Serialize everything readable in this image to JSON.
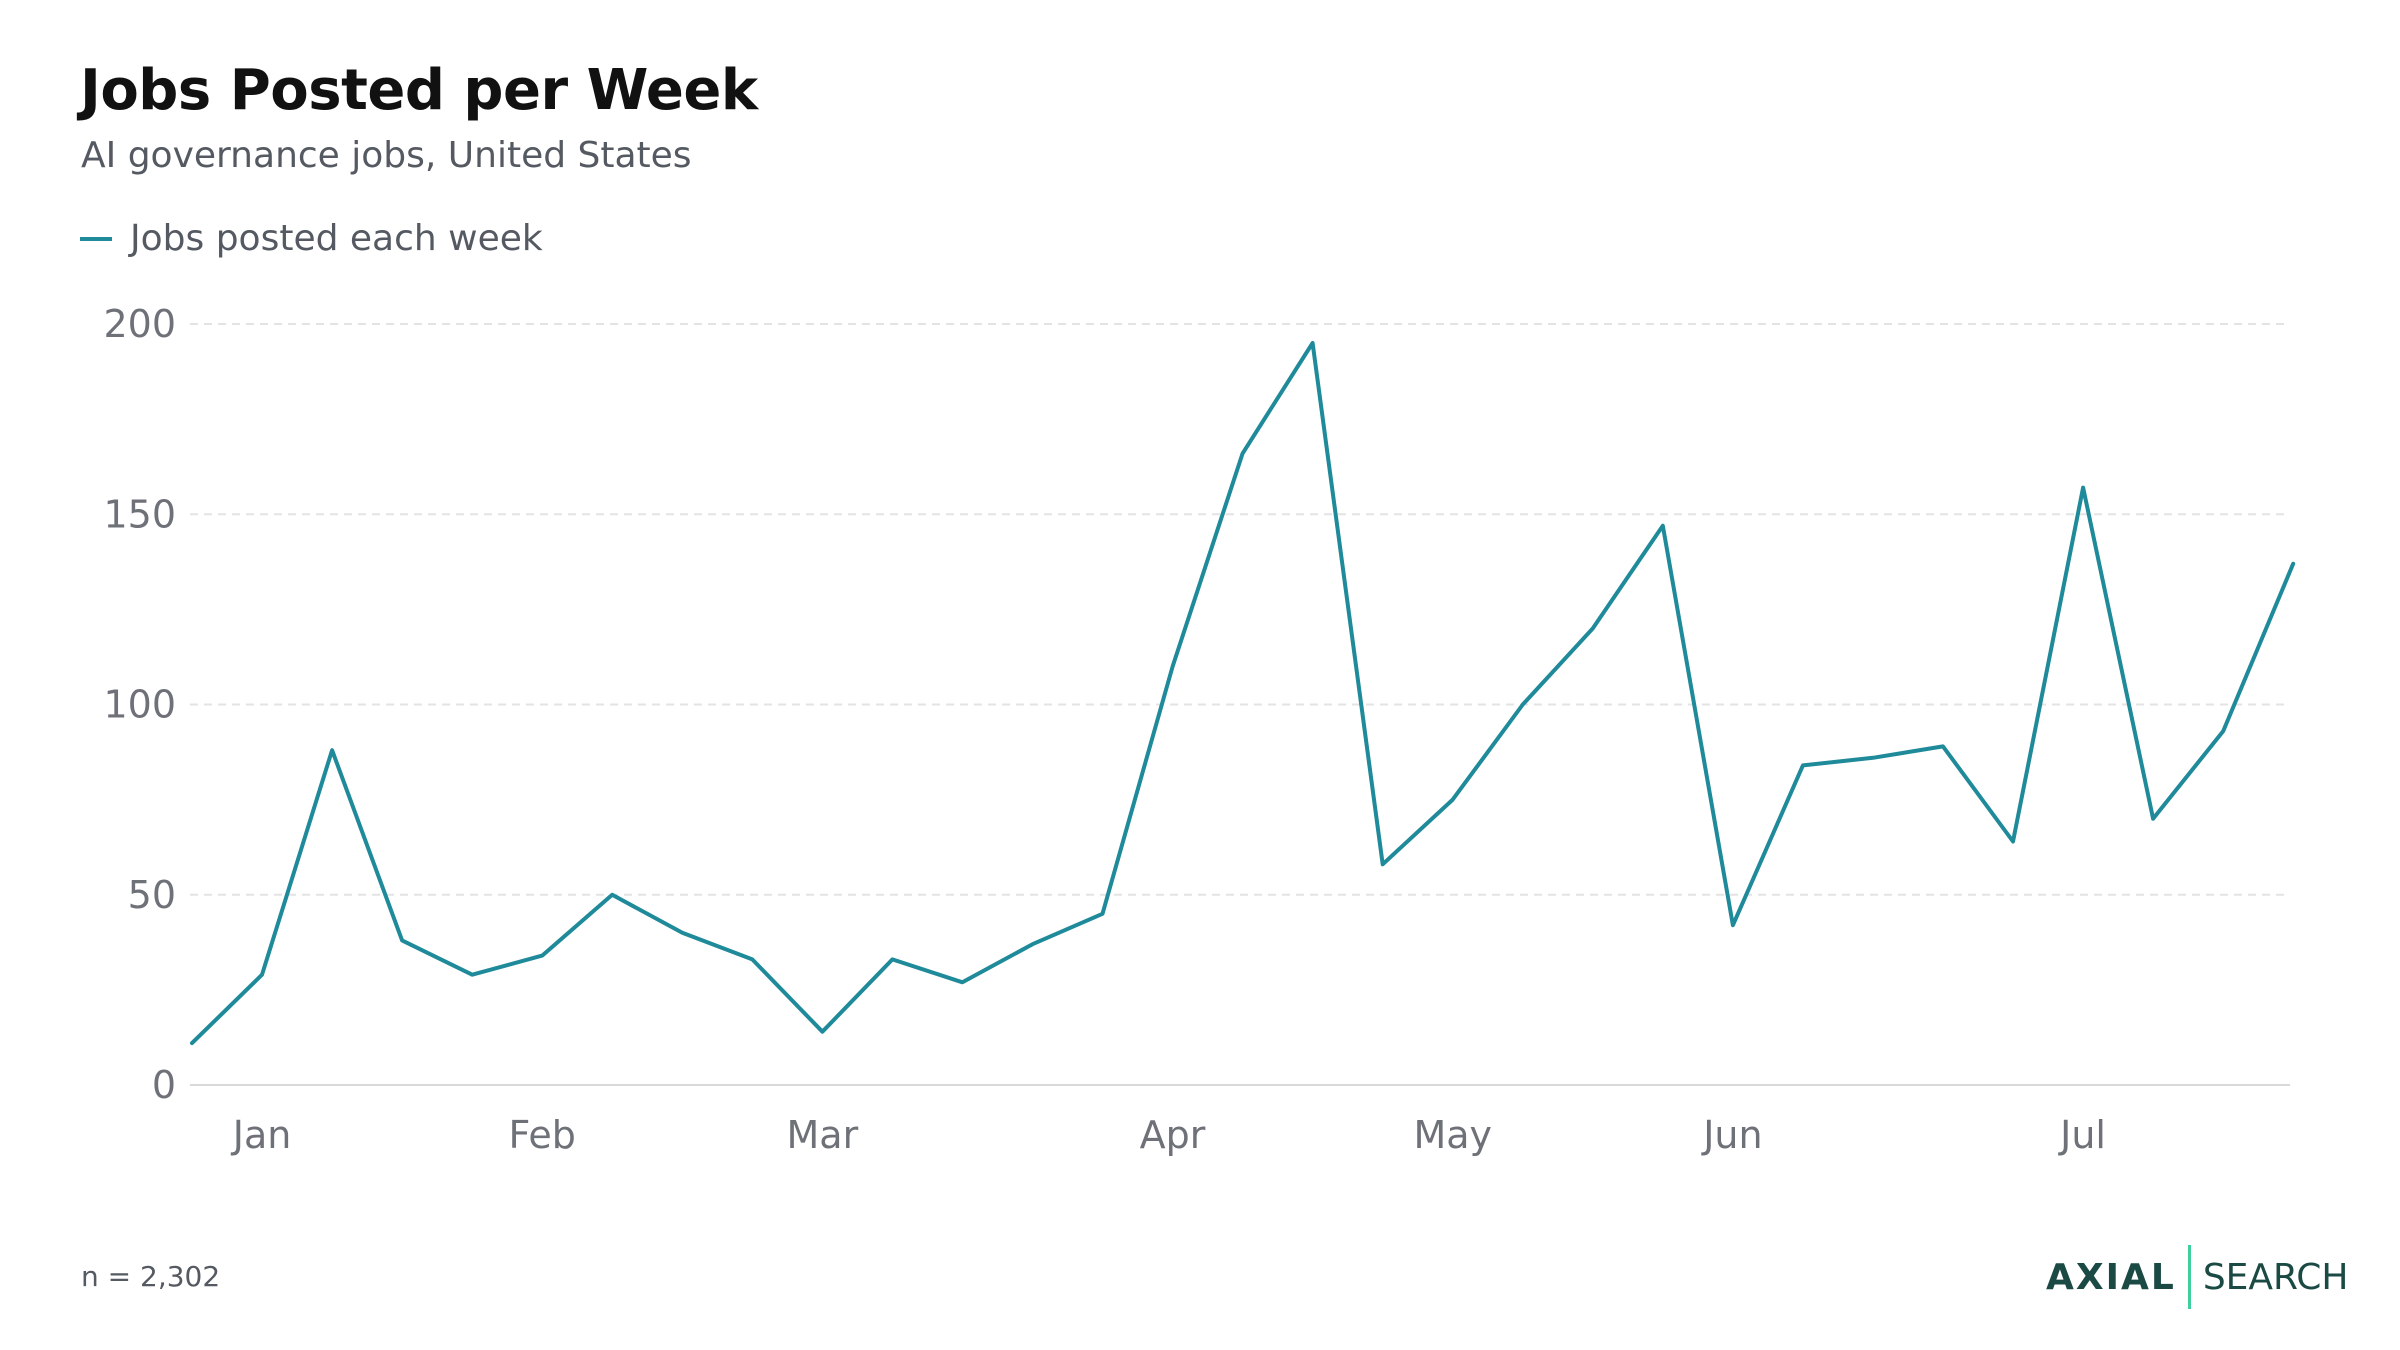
{
  "title": "Jobs Posted per Week",
  "subtitle": "AI governance jobs, United States",
  "footnote": "n = 2,302",
  "logo": {
    "brand": "AXIAL",
    "product": "SEARCH"
  },
  "colors": {
    "line": "#1f8a9a",
    "grid": "#e3e3e3",
    "axis_text": "#6e7178",
    "logo": "#1b4a44",
    "logo_accent": "#3fcf9c"
  },
  "chart_data": {
    "type": "line",
    "title": "Jobs Posted per Week",
    "subtitle": "AI governance jobs, United States",
    "xlabel": "",
    "ylabel": "",
    "ylim": [
      0,
      200
    ],
    "yticks": [
      0,
      50,
      100,
      150,
      200
    ],
    "grid": true,
    "legend_position": "top-left",
    "x_ticks": [
      {
        "label": "Jan",
        "index": 1
      },
      {
        "label": "Feb",
        "index": 5
      },
      {
        "label": "Mar",
        "index": 9
      },
      {
        "label": "Apr",
        "index": 14
      },
      {
        "label": "May",
        "index": 18
      },
      {
        "label": "Jun",
        "index": 22
      },
      {
        "label": "Jul",
        "index": 27
      }
    ],
    "series": [
      {
        "name": "Jobs posted each week",
        "values": [
          11,
          29,
          88,
          38,
          29,
          34,
          50,
          40,
          33,
          14,
          33,
          27,
          37,
          45,
          110,
          166,
          195,
          58,
          75,
          100,
          120,
          147,
          42,
          84,
          86,
          89,
          64,
          157,
          70,
          93,
          137
        ]
      }
    ]
  }
}
